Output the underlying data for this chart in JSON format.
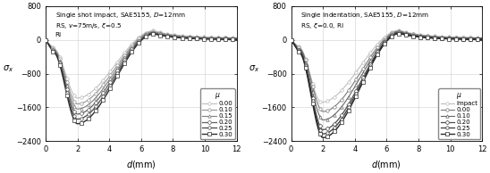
{
  "left_title": "Single shot impact, SAE5155, $D$=12mm\nRS, $v$=75m/s, $\\xi$=0.5\nRI",
  "right_title": "Single Indentation, SAE5155, $D$=12mm\nRS, $\\xi$=0.0, RI",
  "xlabel": "$d$(mm)",
  "ylabel": "$\\sigma_x$",
  "xlim": [
    0,
    12
  ],
  "ylim": [
    -2400,
    800
  ],
  "yticks": [
    -2400,
    -1600,
    -800,
    0,
    800
  ],
  "xticks": [
    0,
    2,
    4,
    6,
    8,
    10,
    12
  ],
  "left_legend_labels": [
    "0.00",
    "0.10",
    "0.15",
    "0.20",
    "0.25",
    "0.30"
  ],
  "right_legend_labels": [
    "Impact",
    "0.00",
    "0.10",
    "0.20",
    "0.25",
    "0.30"
  ],
  "left_params": [
    [
      0.5,
      -200,
      2.0,
      -1380,
      6.8,
      220,
      50
    ],
    [
      0.5,
      -220,
      2.0,
      -1520,
      6.8,
      200,
      40
    ],
    [
      0.5,
      -240,
      2.0,
      -1640,
      6.8,
      185,
      30
    ],
    [
      0.5,
      -260,
      2.0,
      -1760,
      6.8,
      170,
      20
    ],
    [
      0.5,
      -280,
      2.0,
      -1880,
      6.8,
      155,
      10
    ],
    [
      0.5,
      -300,
      2.0,
      -1990,
      6.8,
      140,
      5
    ]
  ],
  "right_params": [
    [
      0.5,
      -180,
      1.9,
      -1480,
      6.8,
      230,
      50
    ],
    [
      0.5,
      -200,
      2.0,
      -1700,
      6.8,
      210,
      40
    ],
    [
      0.5,
      -230,
      2.0,
      -1900,
      6.8,
      195,
      30
    ],
    [
      0.5,
      -260,
      2.0,
      -2130,
      6.8,
      180,
      15
    ],
    [
      0.5,
      -280,
      2.0,
      -2230,
      6.8,
      165,
      10
    ],
    [
      0.5,
      -300,
      2.0,
      -2320,
      6.8,
      150,
      5
    ]
  ],
  "left_markers": [
    "o",
    "o",
    "^",
    "D",
    "o",
    "s"
  ],
  "right_markers": [
    "o",
    "o",
    "^",
    "D",
    "o",
    "s"
  ],
  "gray_levels_left": [
    0.72,
    0.58,
    0.5,
    0.38,
    0.28,
    0.18
  ],
  "gray_levels_right": [
    0.72,
    0.48,
    0.4,
    0.3,
    0.22,
    0.15
  ],
  "linewidths_left": [
    0.7,
    0.8,
    0.8,
    0.9,
    0.9,
    1.0
  ],
  "linewidths_right": [
    0.7,
    0.8,
    0.8,
    0.9,
    0.9,
    1.0
  ]
}
